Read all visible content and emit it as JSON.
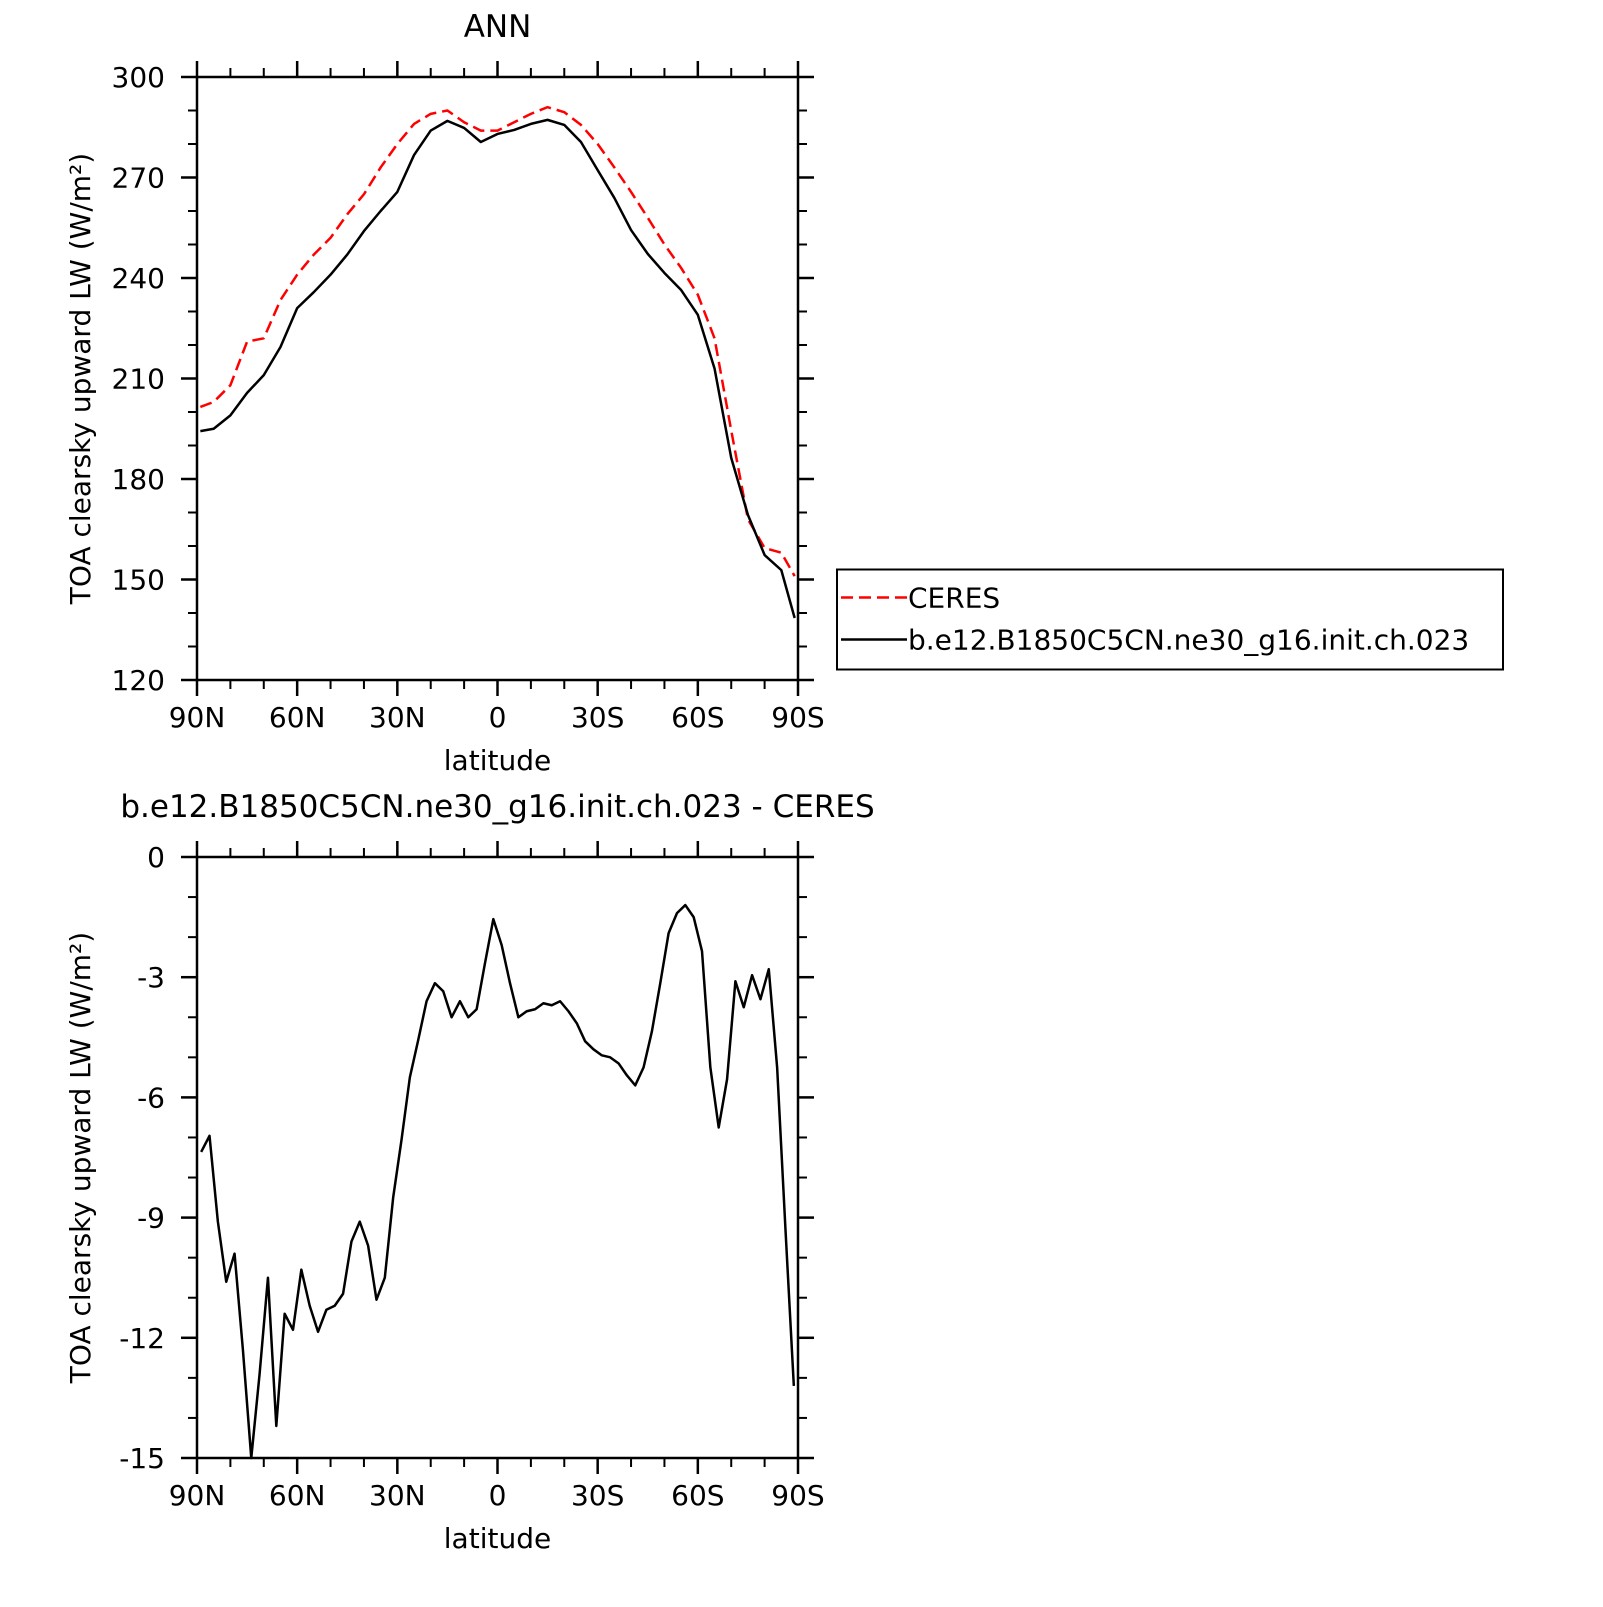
{
  "chart_data": [
    {
      "type": "line",
      "title": "ANN",
      "xlabel": "latitude",
      "ylabel": "TOA clearsky upward LW (W/m²)",
      "x": [
        89,
        85,
        80,
        75,
        70,
        65,
        60,
        55,
        50,
        45,
        40,
        35,
        30,
        25,
        20,
        15,
        10,
        5,
        0,
        -5,
        -10,
        -15,
        -20,
        -25,
        -30,
        -35,
        -40,
        -45,
        -50,
        -55,
        -60,
        -65,
        -70,
        -75,
        -80,
        -85,
        -89
      ],
      "series": [
        {
          "name": "CERES",
          "color": "#ff0000",
          "style": "dashed",
          "values": [
            201.5,
            203,
            208,
            221,
            222,
            233.4,
            241,
            247,
            252,
            259,
            265,
            273,
            280,
            286,
            289,
            290,
            286.5,
            284,
            284,
            286.5,
            289,
            291,
            289.5,
            285.7,
            280,
            273,
            265.7,
            258,
            250,
            243,
            235,
            222,
            194.5,
            168,
            159.4,
            158,
            151
          ]
        },
        {
          "name": "b.e12.B1850C5CN.ne30_g16.init.ch.023",
          "color": "#000000",
          "style": "solid",
          "values": [
            194.3,
            195,
            199,
            205.7,
            211,
            219.4,
            231,
            235.8,
            241,
            247,
            254,
            260,
            265.7,
            276.7,
            284,
            286.9,
            284.8,
            280.6,
            283,
            284.2,
            286,
            287.2,
            285.7,
            280.6,
            272.2,
            263.9,
            254.3,
            247.2,
            241.5,
            236.4,
            229,
            213,
            186.3,
            169.3,
            157.3,
            152.8,
            138.5
          ]
        }
      ],
      "xlim": [
        90,
        -90
      ],
      "xticks": [
        {
          "value": 90,
          "label": "90N"
        },
        {
          "value": 60,
          "label": "60N"
        },
        {
          "value": 30,
          "label": "30N"
        },
        0,
        {
          "value": -30,
          "label": "30S"
        },
        {
          "value": -60,
          "label": "60S"
        },
        {
          "value": -90,
          "label": "90S"
        }
      ],
      "ylim": [
        120,
        300
      ],
      "yticks": [
        120,
        150,
        180,
        210,
        240,
        270,
        300
      ],
      "legend": "right"
    },
    {
      "type": "line",
      "title": "b.e12.B1850C5CN.ne30_g16.init.ch.023 - CERES",
      "xlabel": "latitude",
      "ylabel": "TOA clearsky upward LW (W/m²)",
      "x": [
        88.75,
        86.25,
        83.75,
        81.25,
        78.75,
        76.25,
        73.75,
        71.25,
        68.75,
        66.25,
        63.75,
        61.25,
        58.75,
        56.25,
        53.75,
        51.25,
        48.75,
        46.25,
        43.75,
        41.25,
        38.75,
        36.25,
        33.75,
        31.25,
        28.75,
        26.25,
        23.75,
        21.25,
        18.75,
        16.25,
        13.75,
        11.25,
        8.75,
        6.25,
        3.75,
        1.25,
        -1.25,
        -3.75,
        -6.25,
        -8.75,
        -11.25,
        -13.75,
        -16.25,
        -18.75,
        -21.25,
        -23.75,
        -26.25,
        -28.75,
        -31.25,
        -33.75,
        -36.25,
        -38.75,
        -41.25,
        -43.75,
        -46.25,
        -48.75,
        -51.25,
        -53.75,
        -56.25,
        -58.75,
        -61.25,
        -63.75,
        -66.25,
        -68.75,
        -71.25,
        -73.75,
        -76.25,
        -78.75,
        -81.25,
        -83.75,
        -86.25,
        -88.75
      ],
      "values": [
        -7.36,
        -6.96,
        -9.1,
        -10.6,
        -9.9,
        -12.3,
        -15,
        -12.9,
        -10.5,
        -14.2,
        -11.4,
        -11.8,
        -10.3,
        -11.2,
        -11.85,
        -11.3,
        -11.2,
        -10.9,
        -9.6,
        -9.1,
        -9.7,
        -11.05,
        -10.5,
        -8.5,
        -7.06,
        -5.5,
        -4.57,
        -3.6,
        -3.15,
        -3.35,
        -4.0,
        -3.6,
        -4.0,
        -3.8,
        -2.65,
        -1.55,
        -2.2,
        -3.15,
        -4.0,
        -3.85,
        -3.8,
        -3.65,
        -3.7,
        -3.6,
        -3.85,
        -4.15,
        -4.6,
        -4.8,
        -4.95,
        -5.0,
        -5.15,
        -5.45,
        -5.7,
        -5.25,
        -4.35,
        -3.15,
        -1.9,
        -1.4,
        -1.2,
        -1.5,
        -2.35,
        -5.25,
        -6.75,
        -5.55,
        -3.1,
        -3.75,
        -2.95,
        -3.55,
        -2.8,
        -5.25,
        -9.3,
        -13.2
      ],
      "color": "#000000",
      "xlim": [
        90,
        -90
      ],
      "xticks": [
        {
          "value": 90,
          "label": "90N"
        },
        {
          "value": 60,
          "label": "60N"
        },
        {
          "value": 30,
          "label": "30N"
        },
        0,
        {
          "value": -30,
          "label": "30S"
        },
        {
          "value": -60,
          "label": "60S"
        },
        {
          "value": -90,
          "label": "90S"
        }
      ],
      "ylim": [
        -15,
        0
      ],
      "yticks": [
        -15,
        -12,
        -9,
        -6,
        -3,
        0
      ]
    }
  ]
}
